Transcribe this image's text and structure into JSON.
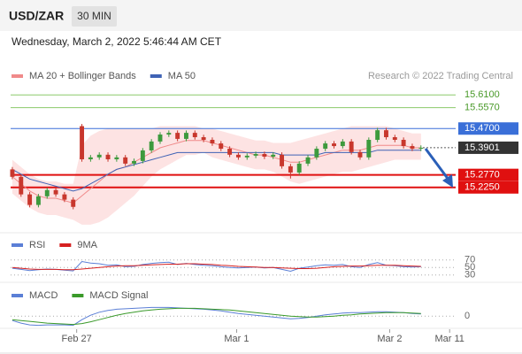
{
  "header": {
    "symbol": "USD/ZAR",
    "interval": "30 MIN",
    "timestamp": "Wednesday, March 2, 2022 5:46:44 AM CET"
  },
  "chart_data": [
    {
      "type": "candlestick",
      "credit": "Research © 2022 Trading Central",
      "up_color": "#3d9a3d",
      "down_color": "#c8372d",
      "xlim": [
        -0.3,
        51.5
      ],
      "xticks": [
        {
          "value": 7.4,
          "label": "Feb 27"
        },
        {
          "value": 25.8,
          "label": "Mar 1"
        },
        {
          "value": 43.4,
          "label": "Mar 2"
        },
        {
          "value": 50.3,
          "label": "Mar 11"
        }
      ],
      "ylim": [
        15.04,
        15.655
      ],
      "open": [
        15.3,
        15.269,
        15.196,
        15.152,
        15.188,
        15.214,
        15.196,
        15.174,
        15.48,
        15.342,
        15.35,
        15.361,
        15.342,
        15.35,
        15.324,
        15.335,
        15.379,
        15.416,
        15.445,
        15.452,
        15.427,
        15.452,
        15.434,
        15.423,
        15.408,
        15.386,
        15.361,
        15.35,
        15.357,
        15.364,
        15.353,
        15.361,
        15.313,
        15.287,
        15.324,
        15.35,
        15.386,
        15.408,
        15.397,
        15.416,
        15.372,
        15.35,
        15.423,
        15.463,
        15.434,
        15.423,
        15.397,
        15.386
      ],
      "high": [
        15.31,
        15.279,
        15.206,
        15.198,
        15.224,
        15.224,
        15.206,
        15.184,
        15.489,
        15.36,
        15.371,
        15.371,
        15.36,
        15.36,
        15.345,
        15.389,
        15.426,
        15.455,
        15.462,
        15.462,
        15.462,
        15.462,
        15.444,
        15.433,
        15.418,
        15.396,
        15.371,
        15.367,
        15.374,
        15.374,
        15.371,
        15.371,
        15.323,
        15.334,
        15.36,
        15.396,
        15.418,
        15.418,
        15.426,
        15.426,
        15.382,
        15.433,
        15.473,
        15.473,
        15.444,
        15.433,
        15.407,
        15.4
      ],
      "low": [
        15.259,
        15.186,
        15.142,
        15.142,
        15.178,
        15.186,
        15.164,
        15.134,
        15.332,
        15.332,
        15.34,
        15.332,
        15.332,
        15.314,
        15.314,
        15.325,
        15.369,
        15.406,
        15.435,
        15.417,
        15.417,
        15.424,
        15.413,
        15.398,
        15.376,
        15.351,
        15.34,
        15.34,
        15.347,
        15.343,
        15.343,
        15.303,
        15.262,
        15.277,
        15.314,
        15.34,
        15.376,
        15.387,
        15.387,
        15.362,
        15.34,
        15.34,
        15.413,
        15.424,
        15.413,
        15.387,
        15.376,
        15.376
      ],
      "close": [
        15.269,
        15.196,
        15.152,
        15.188,
        15.214,
        15.196,
        15.174,
        15.144,
        15.342,
        15.35,
        15.361,
        15.342,
        15.35,
        15.324,
        15.335,
        15.379,
        15.416,
        15.445,
        15.452,
        15.427,
        15.452,
        15.434,
        15.423,
        15.408,
        15.386,
        15.361,
        15.35,
        15.357,
        15.364,
        15.353,
        15.361,
        15.313,
        15.287,
        15.324,
        15.35,
        15.386,
        15.408,
        15.397,
        15.416,
        15.372,
        15.35,
        15.423,
        15.463,
        15.434,
        15.423,
        15.397,
        15.386,
        15.39
      ],
      "series": [
        {
          "name": "MA 20 + Bollinger Bands",
          "color": "#f08a8a",
          "band_color": "#fde3e3",
          "values": [
            15.27,
            15.24,
            15.21,
            15.19,
            15.18,
            15.18,
            15.17,
            15.16,
            15.19,
            15.22,
            15.25,
            15.28,
            15.3,
            15.31,
            15.33,
            15.35,
            15.37,
            15.39,
            15.4,
            15.41,
            15.42,
            15.42,
            15.42,
            15.41,
            15.4,
            15.39,
            15.38,
            15.37,
            15.36,
            15.36,
            15.35,
            15.34,
            15.33,
            15.33,
            15.34,
            15.35,
            15.36,
            15.37,
            15.38,
            15.38,
            15.38,
            15.39,
            15.4,
            15.4,
            15.4,
            15.4,
            15.39,
            15.39
          ],
          "upper": [
            15.34,
            15.31,
            15.28,
            15.26,
            15.25,
            15.25,
            15.24,
            15.24,
            15.4,
            15.44,
            15.46,
            15.47,
            15.47,
            15.47,
            15.47,
            15.47,
            15.47,
            15.48,
            15.48,
            15.48,
            15.48,
            15.48,
            15.47,
            15.47,
            15.46,
            15.45,
            15.44,
            15.43,
            15.42,
            15.42,
            15.41,
            15.41,
            15.41,
            15.42,
            15.43,
            15.44,
            15.45,
            15.46,
            15.47,
            15.48,
            15.48,
            15.48,
            15.48,
            15.48,
            15.47,
            15.46,
            15.45,
            15.45
          ],
          "lower": [
            15.2,
            15.17,
            15.14,
            15.12,
            15.11,
            15.11,
            15.1,
            15.09,
            15.07,
            15.07,
            15.08,
            15.1,
            15.13,
            15.16,
            15.19,
            15.23,
            15.27,
            15.3,
            15.32,
            15.34,
            15.36,
            15.36,
            15.37,
            15.35,
            15.34,
            15.33,
            15.32,
            15.31,
            15.3,
            15.3,
            15.29,
            15.27,
            15.25,
            15.24,
            15.25,
            15.26,
            15.27,
            15.28,
            15.29,
            15.29,
            15.3,
            15.31,
            15.32,
            15.33,
            15.34,
            15.34,
            15.34,
            15.34
          ]
        },
        {
          "name": "MA 50",
          "color": "#3f63b5",
          "values": [
            15.3,
            15.28,
            15.26,
            15.25,
            15.24,
            15.23,
            15.22,
            15.21,
            15.22,
            15.24,
            15.26,
            15.28,
            15.3,
            15.31,
            15.32,
            15.33,
            15.34,
            15.35,
            15.36,
            15.37,
            15.37,
            15.37,
            15.37,
            15.37,
            15.37,
            15.37,
            15.37,
            15.37,
            15.37,
            15.37,
            15.37,
            15.36,
            15.36,
            15.36,
            15.36,
            15.36,
            15.37,
            15.37,
            15.37,
            15.37,
            15.37,
            15.37,
            15.38,
            15.38,
            15.38,
            15.38,
            15.38,
            15.38
          ]
        }
      ],
      "levels": [
        {
          "value": 15.61,
          "label": "15.6100",
          "color": "#8cc96a",
          "boxed": false,
          "width": 1
        },
        {
          "value": 15.557,
          "label": "15.5570",
          "color": "#8cc96a",
          "boxed": false,
          "width": 1
        },
        {
          "value": 15.47,
          "label": "15.4700",
          "color": "#3a6fd8",
          "boxed": true,
          "width": 1
        },
        {
          "value": 15.3901,
          "label": "15.3901",
          "color": "#333333",
          "boxed": true,
          "width": 1,
          "dotted": true
        },
        {
          "value": 15.277,
          "label": "15.2770",
          "color": "#e01010",
          "boxed": true,
          "width": 2
        },
        {
          "value": 15.225,
          "label": "15.2250",
          "color": "#e01010",
          "boxed": true,
          "width": 2
        }
      ]
    },
    {
      "type": "line",
      "ylim": [
        20,
        86
      ],
      "yticks": [
        70,
        50,
        30
      ],
      "series": [
        {
          "name": "RSI",
          "color": "#5b7fd6",
          "values": [
            48,
            45,
            42,
            44,
            46,
            45,
            43,
            41,
            66,
            62,
            60,
            56,
            57,
            52,
            53,
            58,
            61,
            63,
            64,
            58,
            61,
            58,
            56,
            55,
            52,
            50,
            49,
            50,
            51,
            49,
            50,
            45,
            40,
            48,
            51,
            55,
            57,
            56,
            58,
            52,
            50,
            58,
            63,
            56,
            55,
            52,
            51,
            52
          ]
        },
        {
          "name": "9MA",
          "color": "#d62020",
          "values": [
            50,
            48,
            46,
            45,
            45,
            45,
            44,
            44,
            46,
            48,
            50,
            52,
            54,
            55,
            55,
            56,
            57,
            58,
            59,
            59,
            60,
            60,
            59,
            58,
            56,
            55,
            53,
            52,
            51,
            50,
            50,
            49,
            48,
            47,
            47,
            48,
            50,
            52,
            53,
            54,
            54,
            55,
            56,
            56,
            56,
            55,
            54,
            53
          ]
        }
      ]
    },
    {
      "type": "line",
      "ylim": [
        -0.03,
        0.035
      ],
      "yticks": [
        0
      ],
      "series": [
        {
          "name": "MACD",
          "color": "#5b7fd6",
          "values": [
            -0.01,
            -0.016,
            -0.02,
            -0.021,
            -0.02,
            -0.02,
            -0.02,
            -0.021,
            -0.008,
            0.002,
            0.009,
            0.013,
            0.016,
            0.017,
            0.018,
            0.019,
            0.02,
            0.02,
            0.02,
            0.019,
            0.018,
            0.017,
            0.016,
            0.014,
            0.012,
            0.009,
            0.006,
            0.004,
            0.002,
            0.0,
            -0.002,
            -0.004,
            -0.006,
            -0.005,
            -0.003,
            0.0,
            0.003,
            0.005,
            0.007,
            0.008,
            0.008,
            0.009,
            0.01,
            0.01,
            0.009,
            0.008,
            0.006,
            0.005
          ]
        },
        {
          "name": "MACD Signal",
          "color": "#3a9a2a",
          "values": [
            -0.008,
            -0.01,
            -0.012,
            -0.014,
            -0.016,
            -0.017,
            -0.018,
            -0.019,
            -0.017,
            -0.013,
            -0.008,
            -0.003,
            0.002,
            0.006,
            0.009,
            0.012,
            0.014,
            0.016,
            0.017,
            0.018,
            0.018,
            0.018,
            0.017,
            0.016,
            0.015,
            0.014,
            0.012,
            0.01,
            0.008,
            0.006,
            0.004,
            0.002,
            0.0,
            -0.001,
            -0.002,
            -0.002,
            -0.001,
            0.0,
            0.002,
            0.003,
            0.005,
            0.006,
            0.007,
            0.008,
            0.008,
            0.008,
            0.007,
            0.006
          ]
        }
      ]
    }
  ]
}
